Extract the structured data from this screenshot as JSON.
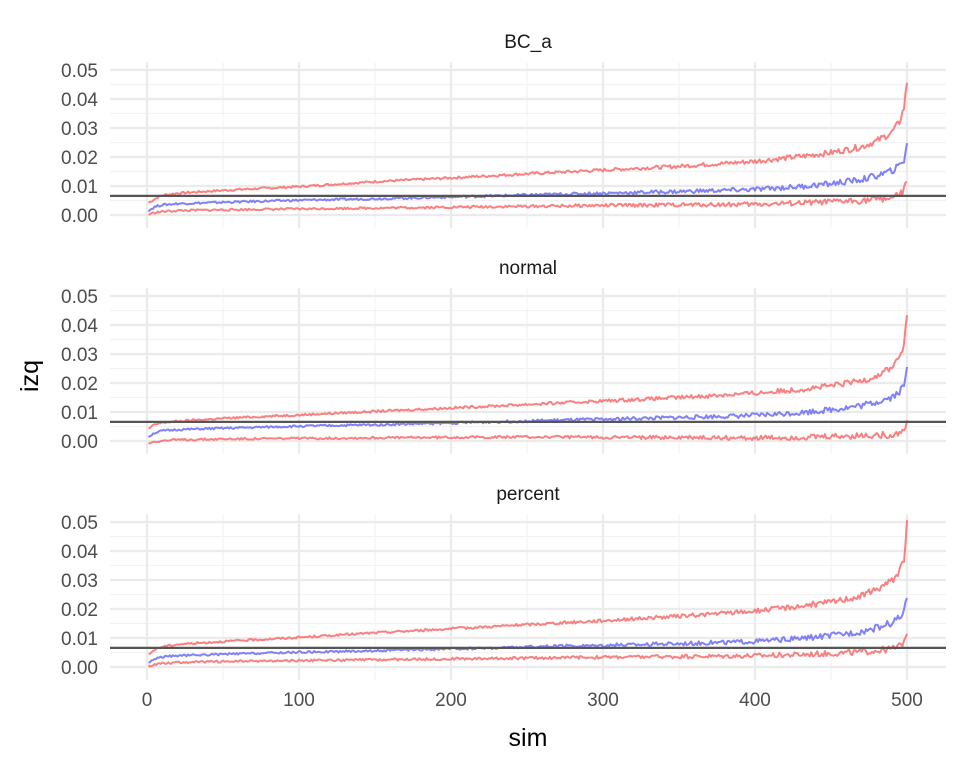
{
  "chart_data": {
    "type": "line",
    "xlabel": "sim",
    "ylabel": "izq",
    "xlim": [
      0,
      500
    ],
    "ylim": [
      0,
      0.05
    ],
    "x_ticks": [
      0,
      100,
      200,
      300,
      400,
      500
    ],
    "x_tick_labels": [
      "0",
      "100",
      "200",
      "300",
      "400",
      "500"
    ],
    "y_ticks": [
      0,
      0.01,
      0.02,
      0.03,
      0.04,
      0.05
    ],
    "y_tick_labels": [
      "0.00",
      "0.01",
      "0.02",
      "0.03",
      "0.04",
      "0.05"
    ],
    "grid": true,
    "reference_line": {
      "y": 0.0066,
      "color": "#555555"
    },
    "colors": {
      "bounds": "#F87373",
      "estimate": "#7373F8"
    },
    "panels": [
      {
        "title": "BC_a",
        "series": [
          {
            "role": "upper",
            "x": [
              1,
              5,
              10,
              20,
              50,
              100,
              150,
              200,
              250,
              300,
              350,
              400,
              430,
              450,
              470,
              480,
              490,
              495,
              498,
              500
            ],
            "values": [
              0.0042,
              0.0055,
              0.0068,
              0.0075,
              0.0085,
              0.0098,
              0.0115,
              0.0128,
              0.0142,
              0.0155,
              0.0168,
              0.0185,
              0.0202,
              0.0215,
              0.0235,
              0.0255,
              0.0285,
              0.032,
              0.037,
              0.046
            ]
          },
          {
            "role": "estimate",
            "x": [
              1,
              5,
              10,
              20,
              50,
              100,
              150,
              200,
              250,
              300,
              350,
              400,
              430,
              450,
              470,
              480,
              490,
              495,
              498,
              500
            ],
            "values": [
              0.0015,
              0.0028,
              0.0035,
              0.0039,
              0.0044,
              0.0051,
              0.0056,
              0.0062,
              0.0069,
              0.0075,
              0.0081,
              0.0088,
              0.0098,
              0.0108,
              0.0122,
              0.0135,
              0.0152,
              0.017,
              0.019,
              0.025
            ]
          },
          {
            "role": "lower",
            "x": [
              1,
              5,
              10,
              20,
              50,
              100,
              150,
              200,
              250,
              300,
              350,
              400,
              430,
              450,
              470,
              480,
              490,
              495,
              498,
              500
            ],
            "values": [
              0.0002,
              0.0008,
              0.0012,
              0.0015,
              0.0018,
              0.0021,
              0.0024,
              0.0027,
              0.003,
              0.0033,
              0.0035,
              0.0037,
              0.0041,
              0.0045,
              0.005,
              0.0055,
              0.006,
              0.0068,
              0.0085,
              0.0115
            ]
          }
        ]
      },
      {
        "title": "normal",
        "series": [
          {
            "role": "upper",
            "x": [
              1,
              5,
              10,
              20,
              50,
              100,
              150,
              200,
              250,
              300,
              350,
              400,
              430,
              450,
              470,
              480,
              490,
              495,
              498,
              500
            ],
            "values": [
              0.0042,
              0.0056,
              0.0063,
              0.0068,
              0.0078,
              0.009,
              0.0102,
              0.0114,
              0.0126,
              0.0138,
              0.015,
              0.0165,
              0.0178,
              0.019,
              0.0208,
              0.0225,
              0.0255,
              0.029,
              0.033,
              0.043
            ]
          },
          {
            "role": "estimate",
            "x": [
              1,
              5,
              10,
              20,
              50,
              100,
              150,
              200,
              250,
              300,
              350,
              400,
              430,
              450,
              470,
              480,
              490,
              495,
              498,
              500
            ],
            "values": [
              0.0015,
              0.0028,
              0.0035,
              0.0039,
              0.0044,
              0.0051,
              0.0056,
              0.0062,
              0.0069,
              0.0075,
              0.0081,
              0.0088,
              0.0098,
              0.0108,
              0.0122,
              0.0135,
              0.0152,
              0.017,
              0.019,
              0.025
            ]
          },
          {
            "role": "lower",
            "x": [
              1,
              5,
              10,
              20,
              50,
              100,
              150,
              200,
              250,
              300,
              350,
              400,
              430,
              450,
              470,
              480,
              490,
              495,
              498,
              500
            ],
            "values": [
              -0.0008,
              -0.0002,
              0.0001,
              0.0004,
              0.0007,
              0.0009,
              0.0011,
              0.0013,
              0.0014,
              0.0013,
              0.0012,
              0.0011,
              0.0012,
              0.0015,
              0.0018,
              0.0019,
              0.0022,
              0.0028,
              0.0042,
              0.0065
            ]
          }
        ]
      },
      {
        "title": "percent",
        "series": [
          {
            "role": "upper",
            "x": [
              1,
              5,
              10,
              20,
              50,
              100,
              150,
              200,
              250,
              300,
              350,
              400,
              430,
              450,
              470,
              480,
              490,
              495,
              498,
              500
            ],
            "values": [
              0.0042,
              0.006,
              0.007,
              0.0078,
              0.0088,
              0.0102,
              0.0118,
              0.0132,
              0.0146,
              0.016,
              0.0175,
              0.0193,
              0.021,
              0.0224,
              0.0245,
              0.0268,
              0.0298,
              0.033,
              0.0375,
              0.0495
            ]
          },
          {
            "role": "estimate",
            "x": [
              1,
              5,
              10,
              20,
              50,
              100,
              150,
              200,
              250,
              300,
              350,
              400,
              430,
              450,
              470,
              480,
              490,
              495,
              498,
              500
            ],
            "values": [
              0.0015,
              0.0028,
              0.0035,
              0.0039,
              0.0044,
              0.0051,
              0.0056,
              0.0062,
              0.0069,
              0.0075,
              0.0081,
              0.0088,
              0.0098,
              0.0108,
              0.0122,
              0.0135,
              0.0152,
              0.017,
              0.019,
              0.025
            ]
          },
          {
            "role": "lower",
            "x": [
              1,
              5,
              10,
              20,
              50,
              100,
              150,
              200,
              250,
              300,
              350,
              400,
              430,
              450,
              470,
              480,
              490,
              495,
              498,
              500
            ],
            "values": [
              0.0003,
              0.0009,
              0.0013,
              0.0016,
              0.0019,
              0.0022,
              0.0025,
              0.0028,
              0.0031,
              0.0034,
              0.0036,
              0.0039,
              0.0043,
              0.0047,
              0.0052,
              0.0057,
              0.0063,
              0.0072,
              0.0088,
              0.0125
            ]
          }
        ]
      }
    ]
  }
}
